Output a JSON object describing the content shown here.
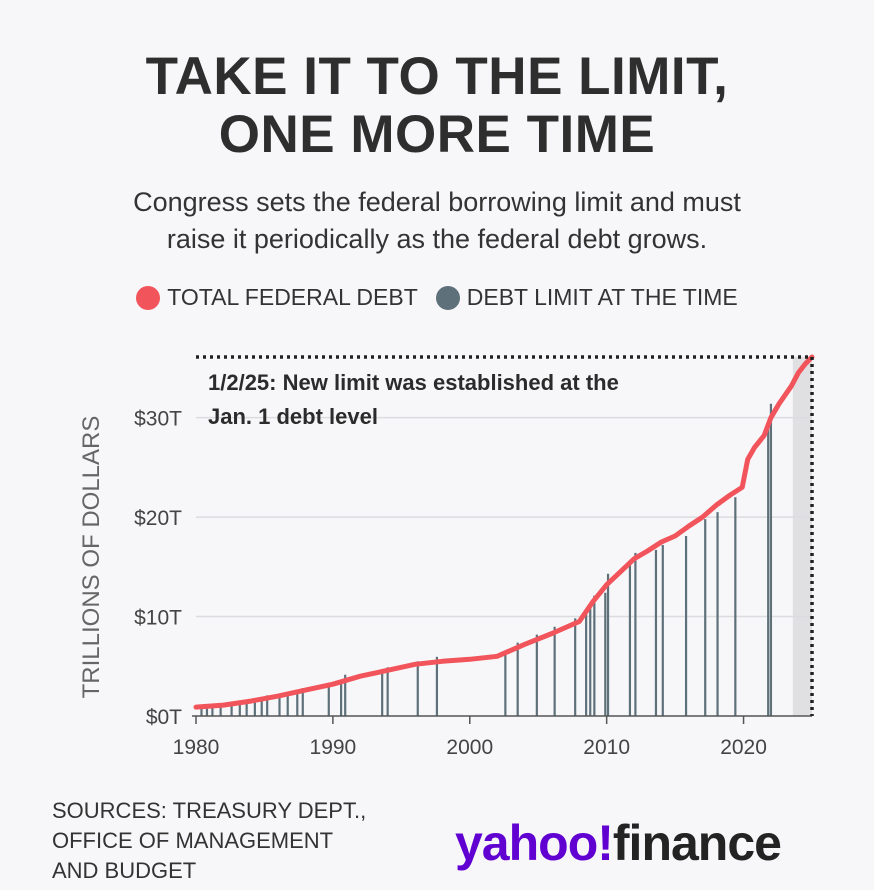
{
  "title_line1": "TAKE IT TO THE LIMIT,",
  "title_line2": "ONE MORE TIME",
  "subtitle_line1": "Congress sets the federal borrowing limit and must",
  "subtitle_line2": "raise it periodically as the federal debt grows.",
  "legend": [
    {
      "label": "TOTAL FEDERAL DEBT",
      "color": "#f2545b"
    },
    {
      "label": "DEBT LIMIT AT THE TIME",
      "color": "#5e707a"
    }
  ],
  "source_lines": [
    "SOURCES: TREASURY DEPT.,",
    "OFFICE OF MANAGEMENT",
    "AND BUDGET"
  ],
  "logo": {
    "part1": "yahoo!",
    "part2": "finance"
  },
  "chart_data": {
    "type": "line",
    "ylabel": "TRILLIONS OF DOLLARS",
    "xlim": [
      1980,
      2025
    ],
    "ylim": [
      0,
      36
    ],
    "x_ticks": [
      1980,
      1990,
      2000,
      2010,
      2020
    ],
    "x_tick_labels": [
      "1980",
      "1990",
      "2000",
      "2010",
      "2020"
    ],
    "y_ticks": [
      0,
      10,
      20,
      30
    ],
    "y_tick_labels": [
      "$0T",
      "$10T",
      "$20T",
      "$30T"
    ],
    "grid": "horizontal",
    "annotation": {
      "lines": [
        "1/2/25: New limit was established at the",
        "Jan. 1 debt level"
      ],
      "x": 2025.0,
      "y": 36.1
    },
    "shaded_region": {
      "x0": 2023.6,
      "x1": 2025.0
    },
    "series": [
      {
        "name": "TOTAL FEDERAL DEBT",
        "type": "line",
        "color": "#f2545b",
        "x": [
          1980,
          1982,
          1984,
          1986,
          1988,
          1990,
          1992,
          1994,
          1996,
          1998,
          2000,
          2002,
          2004,
          2006,
          2008,
          2009,
          2010,
          2011,
          2012,
          2013,
          2014,
          2015,
          2016,
          2017,
          2018,
          2019,
          2019.9,
          2020.3,
          2020.8,
          2021.5,
          2022,
          2022.6,
          2023,
          2023.5,
          2024,
          2024.5,
          2025
        ],
        "y": [
          0.9,
          1.1,
          1.5,
          2.0,
          2.6,
          3.2,
          4.0,
          4.6,
          5.2,
          5.5,
          5.7,
          6.0,
          7.2,
          8.3,
          9.5,
          11.5,
          13.2,
          14.5,
          15.8,
          16.6,
          17.5,
          18.1,
          19.1,
          20.0,
          21.2,
          22.2,
          23.0,
          25.8,
          27.0,
          28.2,
          30.0,
          31.4,
          32.2,
          33.2,
          34.5,
          35.4,
          36.1
        ]
      },
      {
        "name": "DEBT LIMIT AT THE TIME",
        "type": "bars",
        "color": "#5e707a",
        "x": [
          1980.4,
          1980.8,
          1981.2,
          1981.8,
          1982.6,
          1983.2,
          1983.7,
          1984.3,
          1984.8,
          1985.2,
          1986.1,
          1986.7,
          1987.4,
          1987.8,
          1989.7,
          1990.6,
          1990.9,
          1993.6,
          1994.0,
          1996.2,
          1997.6,
          2002.6,
          2003.5,
          2004.9,
          2006.2,
          2007.7,
          2008.5,
          2008.8,
          2009.1,
          2009.9,
          2010.1,
          2011.7,
          2012.1,
          2013.6,
          2014.1,
          2015.8,
          2017.2,
          2018.1,
          2019.4,
          2021.8,
          2022.0
        ],
        "y": [
          0.93,
          0.99,
          1.08,
          1.14,
          1.29,
          1.39,
          1.49,
          1.57,
          1.82,
          2.08,
          2.11,
          2.32,
          2.35,
          2.8,
          3.12,
          3.23,
          4.15,
          4.37,
          4.9,
          5.5,
          5.95,
          6.4,
          7.38,
          8.18,
          8.97,
          9.82,
          10.6,
          11.3,
          12.1,
          12.4,
          14.3,
          15.2,
          16.4,
          16.7,
          17.2,
          18.1,
          19.8,
          20.5,
          22.0,
          28.9,
          31.4
        ]
      }
    ]
  }
}
